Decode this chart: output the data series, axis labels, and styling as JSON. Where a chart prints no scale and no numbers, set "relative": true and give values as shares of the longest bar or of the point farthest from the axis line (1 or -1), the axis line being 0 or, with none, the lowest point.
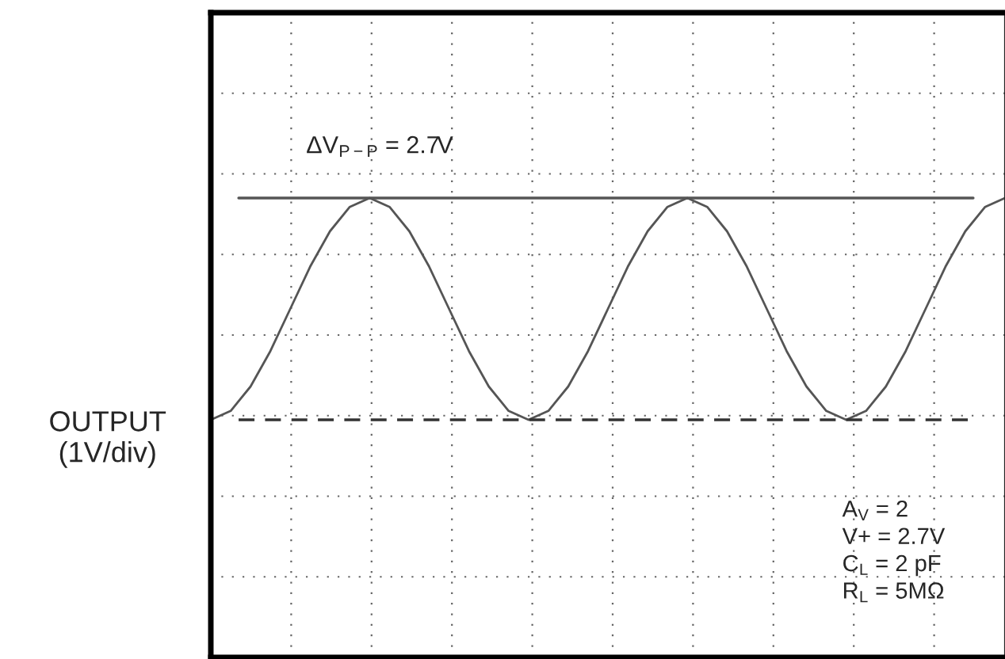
{
  "chart_data": {
    "type": "line",
    "relative": true,
    "ylabel": "OUTPUT\n(1V/div)",
    "categories": [
      null,
      null,
      null,
      null,
      null,
      null,
      null,
      null,
      null,
      null,
      null,
      null,
      null,
      null,
      null,
      null,
      null,
      null,
      null,
      null,
      null,
      null,
      null,
      null,
      null,
      null,
      null,
      null,
      null,
      null,
      null,
      null,
      null,
      null,
      null,
      null,
      null,
      null,
      null,
      null,
      null
    ],
    "series": [
      {
        "color": "#555555",
        "values": [
          0,
          0.04,
          0.15,
          0.31,
          0.5,
          0.69,
          0.85,
          0.96,
          1,
          0.96,
          0.85,
          0.69,
          0.5,
          0.31,
          0.15,
          0.04,
          0,
          0.04,
          0.15,
          0.31,
          0.5,
          0.69,
          0.85,
          0.96,
          1,
          0.96,
          0.85,
          0.69,
          0.5,
          0.31,
          0.15,
          0.04,
          0,
          0.04,
          0.15,
          0.31,
          0.5,
          0.69,
          0.85,
          0.96,
          1
        ]
      }
    ],
    "ref_lines": [
      {
        "axis": "y",
        "value": 1,
        "color": "#555555",
        "line_style": "solid"
      },
      {
        "axis": "y",
        "value": 0,
        "color": "#333333",
        "line_style": "dashed"
      }
    ],
    "annotations": [
      "ΔV$_{P−P}$ = 2.7V",
      "A$_{V}$ = 2",
      "V+ = 2.7V",
      "C$_{L}$ = 2 pF",
      "R$_{L}$ = 5MΩ"
    ],
    "grid": true,
    "tick_labels": false,
    "marker": "none",
    "line_style": "solid",
    "legend": false
  }
}
